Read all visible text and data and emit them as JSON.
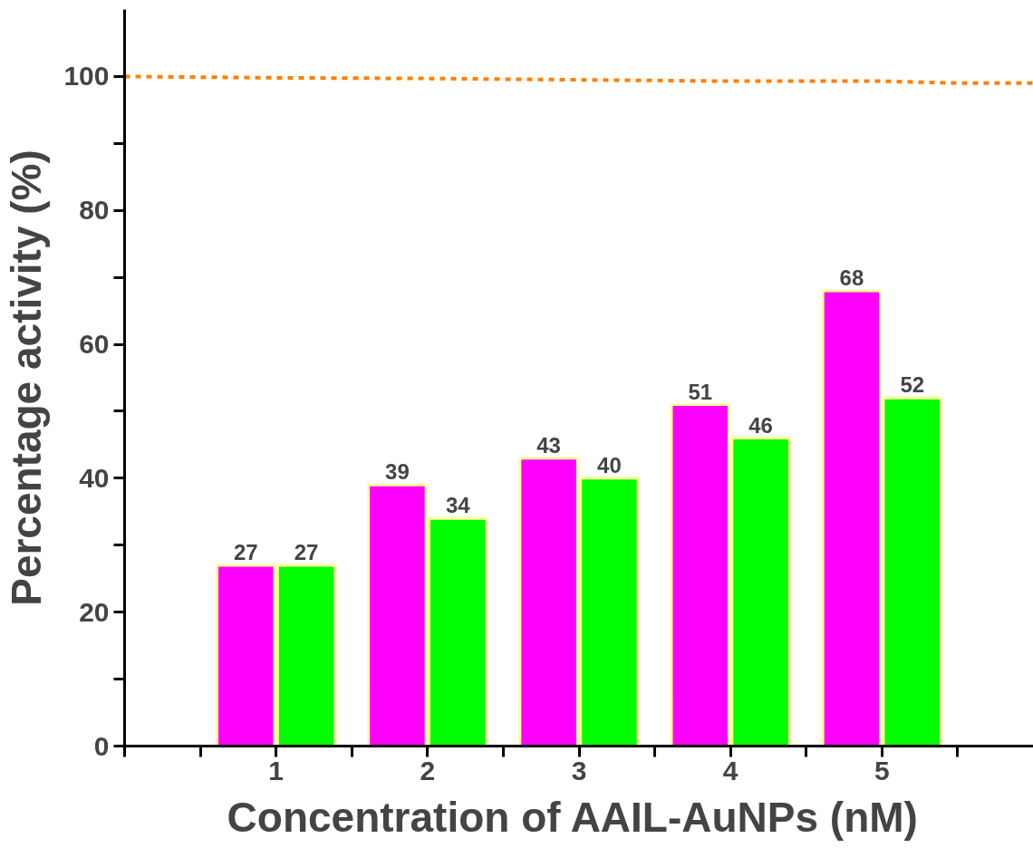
{
  "chart_data": {
    "type": "bar",
    "xlabel": "Concentration of AAIL-AuNPs  (nM)",
    "ylabel": "Percentage activity (%)",
    "x": [
      1,
      2,
      3,
      4,
      5
    ],
    "series": [
      {
        "color": "#ff00ff",
        "values": [
          27,
          39,
          43,
          51,
          68
        ],
        "value_labels": [
          "27",
          "39",
          "43",
          "51",
          "68"
        ]
      },
      {
        "color": "#00ff00",
        "values": [
          27,
          34,
          40,
          46,
          52
        ],
        "value_labels": [
          "27",
          "34",
          "40",
          "46",
          "52"
        ]
      },
      {
        "type": "line",
        "color": "#ff8000",
        "line_style": "dashed",
        "marker": "none",
        "x": [
          0,
          1,
          2,
          3,
          4,
          5,
          5.5,
          6
        ],
        "values": [
          100,
          99.8,
          99.7,
          99.5,
          99.3,
          99.3,
          99,
          99
        ]
      }
    ],
    "grid": false,
    "xlim": [
      0,
      6
    ],
    "xticks": [
      {
        "value": 0,
        "label": null
      },
      {
        "value": 0.5,
        "label": null
      },
      1,
      {
        "value": 1.5,
        "label": null
      },
      2,
      {
        "value": 2.5,
        "label": null
      },
      3,
      {
        "value": 3.5,
        "label": null
      },
      4,
      {
        "value": 4.5,
        "label": null
      },
      5,
      {
        "value": 5.5,
        "label": null
      }
    ],
    "ylim": [
      0,
      110
    ],
    "yticks": [
      0,
      {
        "value": 10,
        "label": null
      },
      20,
      {
        "value": 30,
        "label": null
      },
      40,
      {
        "value": 50,
        "label": null
      },
      60,
      {
        "value": 70,
        "label": null
      },
      80,
      {
        "value": 90,
        "label": null
      },
      100
    ]
  }
}
